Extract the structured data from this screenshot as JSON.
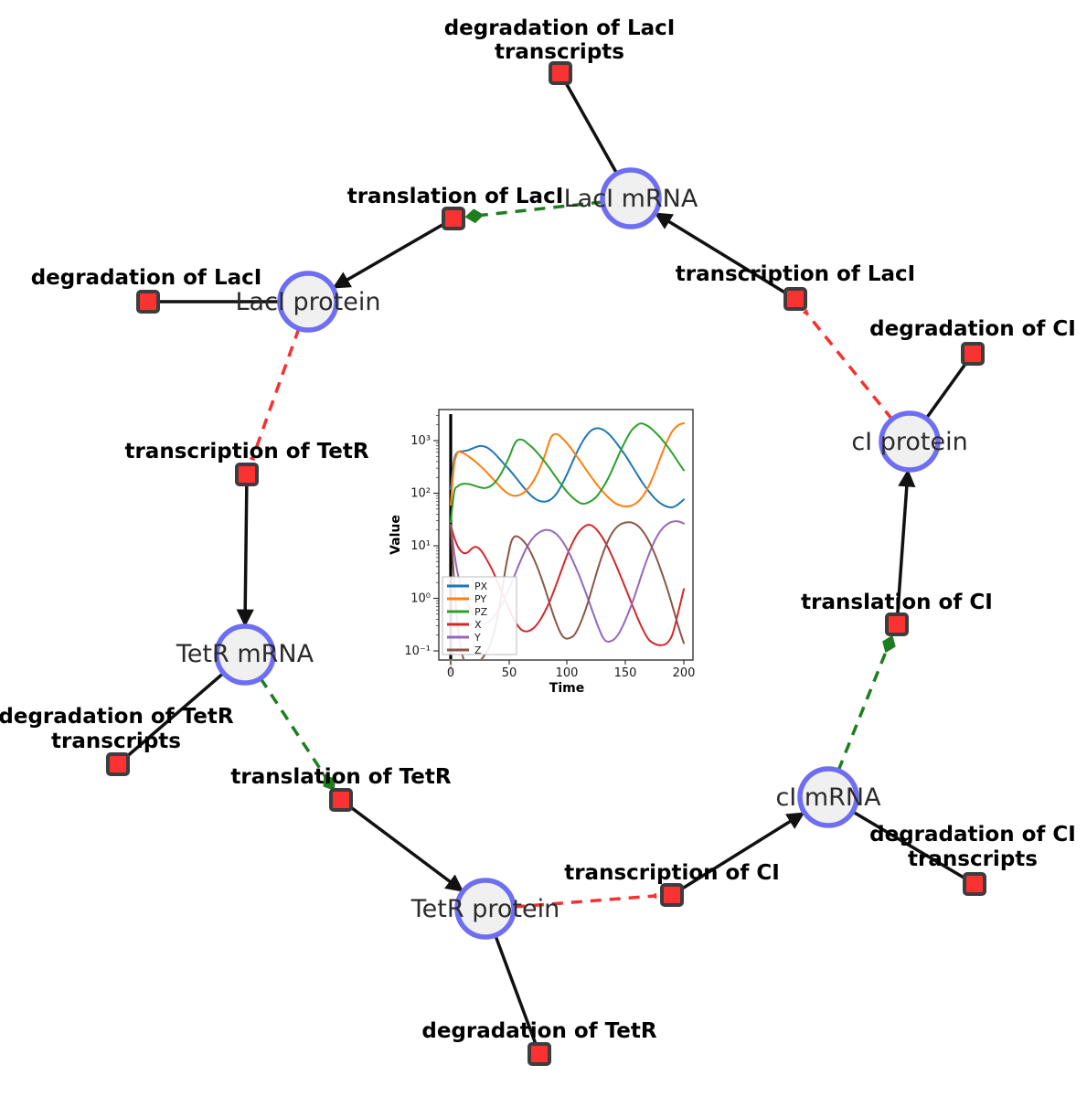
{
  "figure": {
    "species": [
      {
        "label": "LacI mRNA"
      },
      {
        "label": "LacI protein"
      },
      {
        "label": "cI protein"
      },
      {
        "label": "cI mRNA"
      },
      {
        "label": "TetR protein"
      },
      {
        "label": "TetR mRNA"
      }
    ],
    "reactions": [
      {
        "lines": [
          "degradation of LacI",
          "transcripts"
        ]
      },
      {
        "lines": [
          "translation of LacI"
        ]
      },
      {
        "lines": [
          "transcription of LacI"
        ]
      },
      {
        "lines": [
          "degradation of LacI"
        ]
      },
      {
        "lines": [
          "degradation of CI"
        ]
      },
      {
        "lines": [
          "transcription of TetR"
        ]
      },
      {
        "lines": [
          "translation of CI"
        ]
      },
      {
        "lines": [
          "degradation of TetR",
          "transcripts"
        ]
      },
      {
        "lines": [
          "translation of TetR"
        ]
      },
      {
        "lines": [
          "transcription of CI"
        ]
      },
      {
        "lines": [
          "degradation of CI",
          "transcripts"
        ]
      },
      {
        "lines": [
          "degradation of TetR"
        ]
      }
    ],
    "colors": {
      "species_fill": "#f0f0f0",
      "species_border": "#6e6ef2",
      "reaction_fill": "#fa3232",
      "reaction_border": "#3d3d3d",
      "edge": "#111111",
      "modifier_edge": "#1e7d1e",
      "inhibition_edge": "#f83030"
    }
  },
  "chart_data": {
    "type": "line",
    "title": "",
    "xlabel": "Time",
    "ylabel": "Value",
    "yscale": "log",
    "xlim": [
      0,
      200
    ],
    "ylim": [
      0.1,
      1000
    ],
    "x_ticks": [
      "0",
      "50",
      "100",
      "150",
      "200"
    ],
    "y_tick_labels": [
      "10⁻¹",
      "10⁰",
      "10¹",
      "10²",
      "10³"
    ],
    "grid": false,
    "legend_position": "lower left",
    "annotation": "black vertical line at t=0",
    "series": [
      {
        "name": "PX",
        "color": "#1f77b4",
        "points": [
          [
            0,
            120
          ],
          [
            3,
            430
          ],
          [
            6,
            600
          ],
          [
            10,
            625
          ],
          [
            15,
            660
          ],
          [
            20,
            730
          ],
          [
            25,
            790
          ],
          [
            30,
            760
          ],
          [
            35,
            645
          ],
          [
            40,
            500
          ],
          [
            45,
            375
          ],
          [
            50,
            285
          ],
          [
            55,
            210
          ],
          [
            60,
            152
          ],
          [
            65,
            112
          ],
          [
            70,
            86
          ],
          [
            75,
            73
          ],
          [
            80,
            69
          ],
          [
            85,
            74
          ],
          [
            90,
            93
          ],
          [
            95,
            140
          ],
          [
            100,
            235
          ],
          [
            105,
            420
          ],
          [
            110,
            720
          ],
          [
            115,
            1120
          ],
          [
            120,
            1520
          ],
          [
            125,
            1720
          ],
          [
            130,
            1640
          ],
          [
            135,
            1380
          ],
          [
            140,
            1040
          ],
          [
            145,
            740
          ],
          [
            150,
            515
          ],
          [
            155,
            345
          ],
          [
            160,
            228
          ],
          [
            165,
            152
          ],
          [
            170,
            108
          ],
          [
            175,
            80
          ],
          [
            180,
            64
          ],
          [
            185,
            56
          ],
          [
            190,
            54
          ],
          [
            195,
            61
          ],
          [
            200,
            76
          ]
        ]
      },
      {
        "name": "PY",
        "color": "#ff7f0e",
        "points": [
          [
            0,
            60
          ],
          [
            3,
            350
          ],
          [
            6,
            590
          ],
          [
            9,
            600
          ],
          [
            12,
            560
          ],
          [
            15,
            505
          ],
          [
            20,
            420
          ],
          [
            25,
            335
          ],
          [
            30,
            262
          ],
          [
            35,
            200
          ],
          [
            40,
            152
          ],
          [
            45,
            116
          ],
          [
            50,
            96
          ],
          [
            55,
            89
          ],
          [
            60,
            94
          ],
          [
            65,
            114
          ],
          [
            70,
            158
          ],
          [
            75,
            250
          ],
          [
            80,
            470
          ],
          [
            83,
            750
          ],
          [
            86,
            1150
          ],
          [
            89,
            1330
          ],
          [
            92,
            1300
          ],
          [
            95,
            1150
          ],
          [
            100,
            880
          ],
          [
            105,
            630
          ],
          [
            110,
            440
          ],
          [
            115,
            305
          ],
          [
            120,
            212
          ],
          [
            125,
            150
          ],
          [
            130,
            110
          ],
          [
            135,
            84
          ],
          [
            140,
            67
          ],
          [
            145,
            59
          ],
          [
            150,
            56
          ],
          [
            155,
            58
          ],
          [
            160,
            67
          ],
          [
            165,
            89
          ],
          [
            170,
            138
          ],
          [
            175,
            245
          ],
          [
            180,
            480
          ],
          [
            185,
            900
          ],
          [
            190,
            1500
          ],
          [
            195,
            1950
          ],
          [
            200,
            2150
          ]
        ]
      },
      {
        "name": "PZ",
        "color": "#2ca02c",
        "points": [
          [
            0,
            28
          ],
          [
            3,
            105
          ],
          [
            6,
            135
          ],
          [
            10,
            150
          ],
          [
            15,
            150
          ],
          [
            20,
            140
          ],
          [
            25,
            129
          ],
          [
            30,
            126
          ],
          [
            35,
            140
          ],
          [
            40,
            183
          ],
          [
            45,
            280
          ],
          [
            50,
            480
          ],
          [
            54,
            800
          ],
          [
            57,
            1010
          ],
          [
            60,
            1050
          ],
          [
            63,
            1000
          ],
          [
            66,
            880
          ],
          [
            70,
            740
          ],
          [
            75,
            565
          ],
          [
            80,
            415
          ],
          [
            85,
            295
          ],
          [
            90,
            205
          ],
          [
            95,
            145
          ],
          [
            100,
            105
          ],
          [
            105,
            81
          ],
          [
            110,
            67
          ],
          [
            113,
            63
          ],
          [
            116,
            64
          ],
          [
            120,
            70
          ],
          [
            125,
            86
          ],
          [
            130,
            122
          ],
          [
            135,
            190
          ],
          [
            140,
            330
          ],
          [
            145,
            590
          ],
          [
            150,
            1000
          ],
          [
            155,
            1550
          ],
          [
            160,
            1980
          ],
          [
            163,
            2120
          ],
          [
            166,
            2060
          ],
          [
            170,
            1840
          ],
          [
            175,
            1480
          ],
          [
            180,
            1130
          ],
          [
            185,
            830
          ],
          [
            190,
            580
          ],
          [
            195,
            395
          ],
          [
            200,
            272
          ]
        ]
      },
      {
        "name": "X",
        "color": "#d62728",
        "points": [
          [
            0,
            25
          ],
          [
            3,
            14.5
          ],
          [
            6,
            9.8
          ],
          [
            9,
            7.8
          ],
          [
            12,
            7.2
          ],
          [
            15,
            7.6
          ],
          [
            18,
            8.8
          ],
          [
            21,
            9.5
          ],
          [
            24,
            9.0
          ],
          [
            27,
            7.6
          ],
          [
            30,
            5.9
          ],
          [
            35,
            3.7
          ],
          [
            40,
            2.1
          ],
          [
            45,
            1.15
          ],
          [
            50,
            0.63
          ],
          [
            55,
            0.37
          ],
          [
            60,
            0.26
          ],
          [
            65,
            0.235
          ],
          [
            70,
            0.26
          ],
          [
            75,
            0.34
          ],
          [
            80,
            0.52
          ],
          [
            85,
            0.88
          ],
          [
            90,
            1.7
          ],
          [
            95,
            3.4
          ],
          [
            100,
            6.8
          ],
          [
            105,
            12
          ],
          [
            110,
            18.5
          ],
          [
            115,
            23.5
          ],
          [
            118,
            25
          ],
          [
            121,
            24.3
          ],
          [
            125,
            20.5
          ],
          [
            130,
            14.5
          ],
          [
            135,
            9.2
          ],
          [
            140,
            5.3
          ],
          [
            145,
            2.9
          ],
          [
            150,
            1.55
          ],
          [
            155,
            0.82
          ],
          [
            160,
            0.44
          ],
          [
            165,
            0.25
          ],
          [
            170,
            0.163
          ],
          [
            175,
            0.136
          ],
          [
            180,
            0.128
          ],
          [
            185,
            0.138
          ],
          [
            190,
            0.2
          ],
          [
            195,
            0.52
          ],
          [
            200,
            1.5
          ]
        ]
      },
      {
        "name": "Y",
        "color": "#9467bd",
        "points": [
          [
            0,
            25
          ],
          [
            3,
            7.5
          ],
          [
            6,
            3.0
          ],
          [
            9,
            1.65
          ],
          [
            12,
            1.05
          ],
          [
            15,
            0.73
          ],
          [
            18,
            0.55
          ],
          [
            21,
            0.43
          ],
          [
            24,
            0.36
          ],
          [
            27,
            0.325
          ],
          [
            30,
            0.33
          ],
          [
            33,
            0.36
          ],
          [
            36,
            0.42
          ],
          [
            40,
            0.55
          ],
          [
            44,
            0.78
          ],
          [
            48,
            1.2
          ],
          [
            52,
            1.9
          ],
          [
            56,
            3.2
          ],
          [
            60,
            5.2
          ],
          [
            64,
            8.2
          ],
          [
            68,
            11.8
          ],
          [
            72,
            15.2
          ],
          [
            76,
            18
          ],
          [
            80,
            19.7
          ],
          [
            83,
            20
          ],
          [
            86,
            19.4
          ],
          [
            90,
            17.2
          ],
          [
            94,
            13.8
          ],
          [
            98,
            10.2
          ],
          [
            102,
            7.0
          ],
          [
            106,
            4.5
          ],
          [
            110,
            2.8
          ],
          [
            114,
            1.65
          ],
          [
            118,
            0.95
          ],
          [
            122,
            0.54
          ],
          [
            126,
            0.31
          ],
          [
            130,
            0.19
          ],
          [
            133,
            0.155
          ],
          [
            136,
            0.15
          ],
          [
            140,
            0.165
          ],
          [
            144,
            0.21
          ],
          [
            148,
            0.31
          ],
          [
            152,
            0.5
          ],
          [
            156,
            0.85
          ],
          [
            160,
            1.55
          ],
          [
            164,
            2.9
          ],
          [
            168,
            5.2
          ],
          [
            172,
            8.8
          ],
          [
            176,
            13.8
          ],
          [
            180,
            19.2
          ],
          [
            184,
            24
          ],
          [
            188,
            27.5
          ],
          [
            192,
            29.3
          ],
          [
            196,
            28.8
          ],
          [
            200,
            26.5
          ]
        ]
      },
      {
        "name": "Z",
        "color": "#8c564b",
        "points": [
          [
            0,
            25
          ],
          [
            2,
            4.5
          ],
          [
            4,
            0.95
          ],
          [
            6,
            0.31
          ],
          [
            8,
            0.14
          ],
          [
            10,
            0.082
          ],
          [
            13,
            0.058
          ],
          [
            16,
            0.05
          ],
          [
            20,
            0.051
          ],
          [
            24,
            0.06
          ],
          [
            28,
            0.077
          ],
          [
            32,
            0.105
          ],
          [
            35,
            0.155
          ],
          [
            38,
            0.27
          ],
          [
            41,
            0.55
          ],
          [
            44,
            1.35
          ],
          [
            47,
            3.6
          ],
          [
            50,
            8.0
          ],
          [
            52,
            12
          ],
          [
            54,
            14.5
          ],
          [
            56,
            15.2
          ],
          [
            58,
            14.8
          ],
          [
            61,
            13.2
          ],
          [
            65,
            10.4
          ],
          [
            69,
            7.2
          ],
          [
            73,
            4.6
          ],
          [
            77,
            2.7
          ],
          [
            81,
            1.5
          ],
          [
            85,
            0.78
          ],
          [
            89,
            0.42
          ],
          [
            93,
            0.25
          ],
          [
            96,
            0.19
          ],
          [
            99,
            0.172
          ],
          [
            102,
            0.175
          ],
          [
            106,
            0.2
          ],
          [
            110,
            0.29
          ],
          [
            114,
            0.48
          ],
          [
            118,
            0.88
          ],
          [
            122,
            1.75
          ],
          [
            126,
            3.5
          ],
          [
            130,
            6.6
          ],
          [
            134,
            11.2
          ],
          [
            138,
            16.8
          ],
          [
            142,
            22
          ],
          [
            146,
            25.8
          ],
          [
            150,
            27.6
          ],
          [
            153,
            28
          ],
          [
            156,
            27.3
          ],
          [
            160,
            24.5
          ],
          [
            164,
            20
          ],
          [
            168,
            14.8
          ],
          [
            172,
            10
          ],
          [
            176,
            6.2
          ],
          [
            180,
            3.6
          ],
          [
            184,
            2.0
          ],
          [
            188,
            1.05
          ],
          [
            192,
            0.52
          ],
          [
            196,
            0.26
          ],
          [
            200,
            0.14
          ]
        ]
      }
    ]
  }
}
